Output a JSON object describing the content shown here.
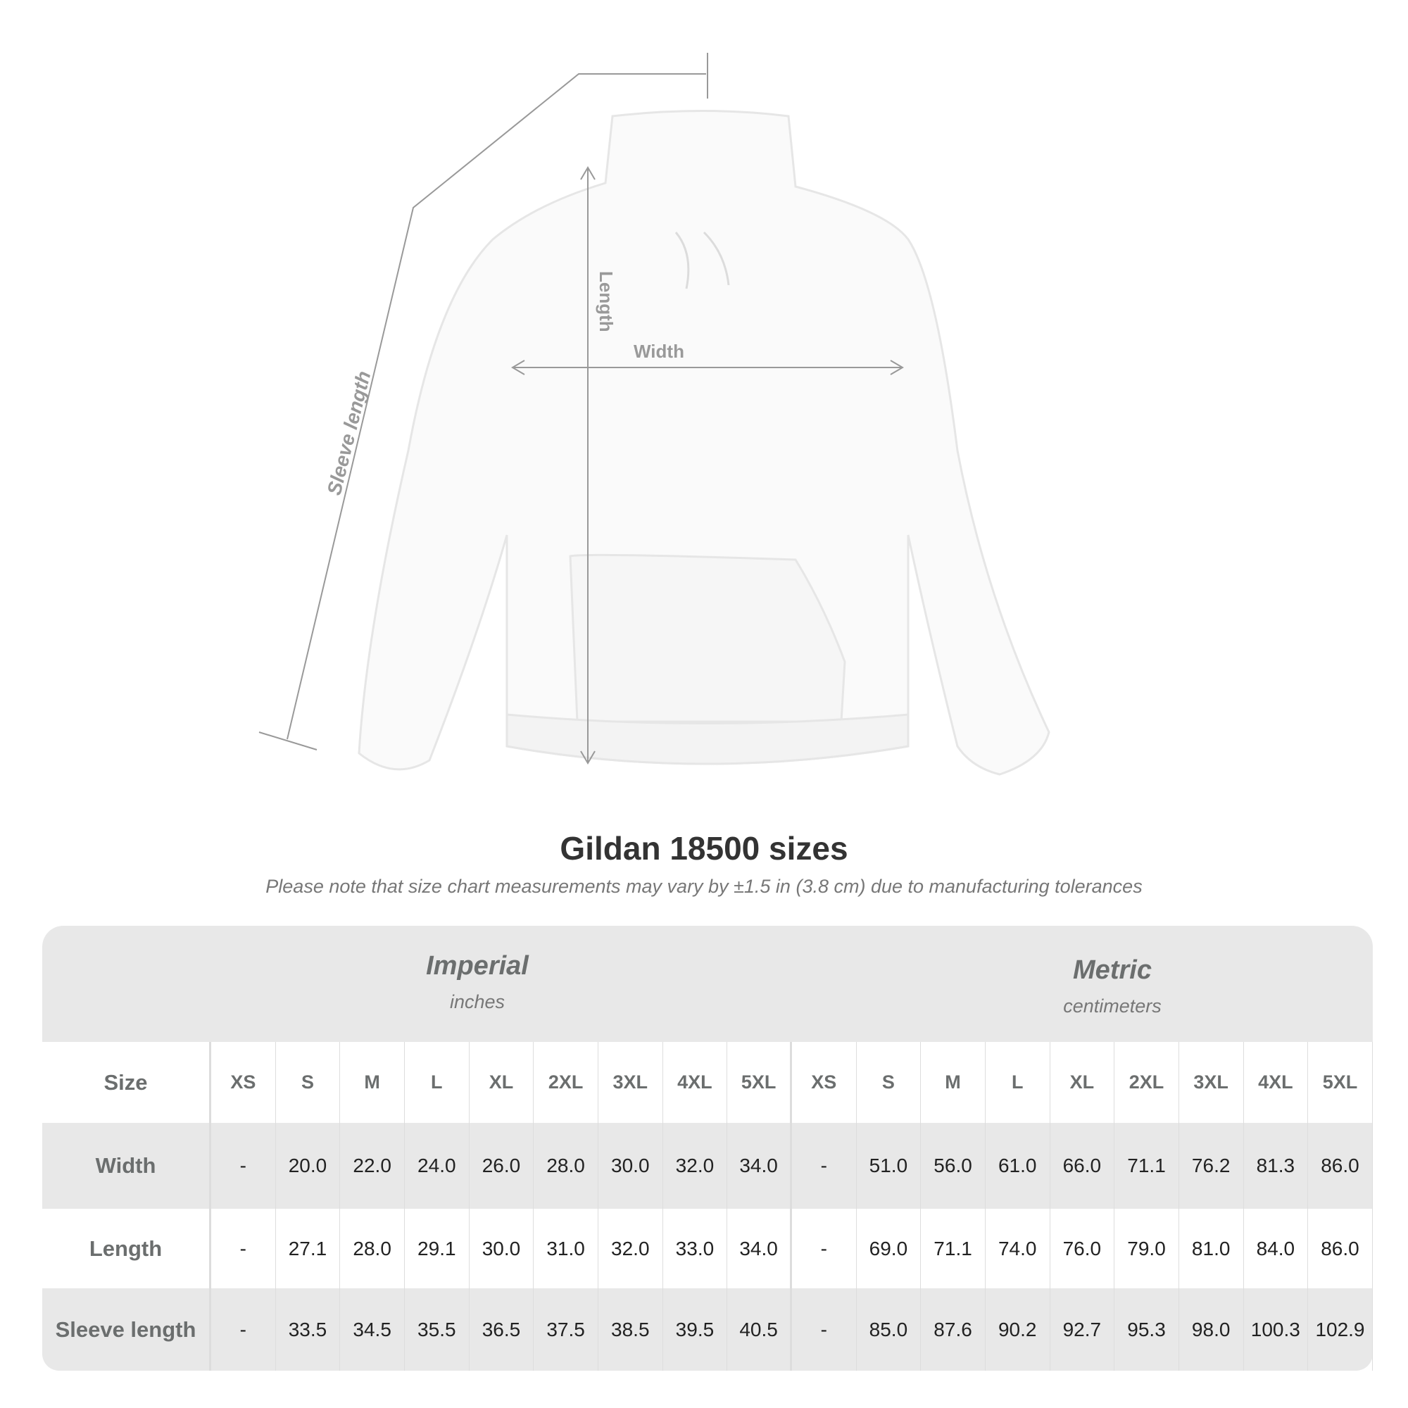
{
  "diagram": {
    "labels": {
      "length": "Length",
      "width": "Width",
      "sleeve": "Sleeve length"
    }
  },
  "title": "Gildan 18500 sizes",
  "note": "Please note that size chart measurements may vary by ±1.5 in (3.8 cm) due to manufacturing tolerances",
  "table": {
    "imperial": {
      "title": "Imperial",
      "unit": "inches"
    },
    "metric": {
      "title": "Metric",
      "unit": "centimeters"
    },
    "size_label": "Size",
    "sizes": [
      "XS",
      "S",
      "M",
      "L",
      "XL",
      "2XL",
      "3XL",
      "4XL",
      "5XL"
    ],
    "rows": [
      {
        "label": "Width",
        "imperial": [
          "-",
          "20.0",
          "22.0",
          "24.0",
          "26.0",
          "28.0",
          "30.0",
          "32.0",
          "34.0"
        ],
        "metric": [
          "-",
          "51.0",
          "56.0",
          "61.0",
          "66.0",
          "71.1",
          "76.2",
          "81.3",
          "86.0"
        ]
      },
      {
        "label": "Length",
        "imperial": [
          "-",
          "27.1",
          "28.0",
          "29.1",
          "30.0",
          "31.0",
          "32.0",
          "33.0",
          "34.0"
        ],
        "metric": [
          "-",
          "69.0",
          "71.1",
          "74.0",
          "76.0",
          "79.0",
          "81.0",
          "84.0",
          "86.0"
        ]
      },
      {
        "label": "Sleeve length",
        "imperial": [
          "-",
          "33.5",
          "34.5",
          "35.5",
          "36.5",
          "37.5",
          "38.5",
          "39.5",
          "40.5"
        ],
        "metric": [
          "-",
          "85.0",
          "87.6",
          "90.2",
          "92.7",
          "95.3",
          "98.0",
          "100.3",
          "102.9"
        ]
      }
    ]
  }
}
